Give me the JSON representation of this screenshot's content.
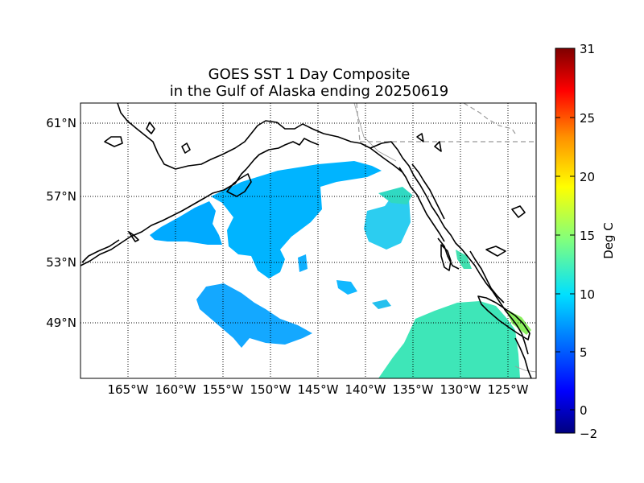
{
  "title": {
    "line1": "GOES SST 1 Day Composite",
    "line2": "in the Gulf of Alaska ending 20250619"
  },
  "map": {
    "lon_labels": [
      "165°W",
      "160°W",
      "155°W",
      "150°W",
      "145°W",
      "140°W",
      "135°W",
      "130°W",
      "125°W"
    ],
    "lat_labels": [
      "61°N",
      "57°N",
      "53°N",
      "49°N"
    ],
    "land_color": "#ffffff",
    "coast_color": "#000000",
    "grid_style": "dotted"
  },
  "colorbar": {
    "label": "Deg C",
    "ticks": [
      "31",
      "25",
      "20",
      "15",
      "10",
      "5",
      "0",
      "−2"
    ],
    "colormap": [
      "#00007f",
      "#0000ff",
      "#007fff",
      "#00ffff",
      "#7fff7f",
      "#ffff00",
      "#ff7f00",
      "#ff0000",
      "#7f0000"
    ]
  },
  "sst": {
    "offshore_deg_c": 9.5,
    "southeast_deg_c": 12.5,
    "coastal_bc_deg_c": 15
  }
}
